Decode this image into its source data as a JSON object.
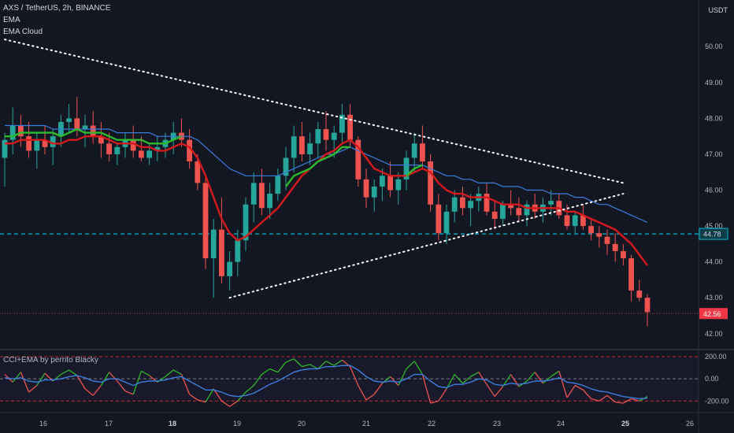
{
  "header": {
    "symbol_line": "AXS / TetherUS, 2h, BINANCE",
    "indicator_1": "EMA",
    "indicator_2": "EMA Cloud",
    "oscillator_label": "CCI+EMA by perrito Blacky",
    "currency": "USDT"
  },
  "colors": {
    "background": "#131722",
    "up": "#26a69a",
    "down": "#ef5350",
    "ema_red": "#d6191c",
    "ema_green": "#2eb82e",
    "ema_blue": "#3b7ddd",
    "price_line": "#00bcd4",
    "last_price": "#f23645"
  },
  "chart_data": [
    {
      "type": "candlestick",
      "title": "AXS / TetherUS, 2h, BINANCE",
      "x_tick_labels": [
        "16",
        "17",
        "18",
        "19",
        "20",
        "21",
        "22",
        "23",
        "24",
        "25",
        "26"
      ],
      "y_tick_labels": [
        "42.00",
        "43.00",
        "44.00",
        "45.00",
        "46.00",
        "47.00",
        "48.00",
        "49.00",
        "50.00"
      ],
      "ylim": [
        41.6,
        51.3
      ],
      "horizontal_level": {
        "value": 44.78,
        "label": "44.78"
      },
      "last_price": {
        "value": 42.56,
        "label": "42.56"
      },
      "candles_ohlc": [
        [
          46.9,
          47.6,
          46.1,
          47.4
        ],
        [
          47.4,
          48.3,
          47.0,
          47.8
        ],
        [
          47.8,
          48.1,
          47.2,
          47.5
        ],
        [
          47.5,
          47.9,
          46.9,
          47.1
        ],
        [
          47.1,
          47.6,
          46.6,
          47.4
        ],
        [
          47.4,
          47.8,
          47.0,
          47.2
        ],
        [
          47.2,
          47.7,
          46.7,
          47.5
        ],
        [
          47.5,
          48.1,
          47.2,
          47.9
        ],
        [
          47.9,
          48.4,
          47.6,
          48.0
        ],
        [
          48.0,
          48.6,
          47.5,
          47.7
        ],
        [
          47.7,
          48.1,
          47.2,
          47.8
        ],
        [
          47.8,
          48.2,
          47.3,
          47.5
        ],
        [
          47.5,
          47.9,
          46.9,
          47.3
        ],
        [
          47.3,
          47.6,
          46.8,
          47.0
        ],
        [
          47.0,
          47.3,
          46.7,
          47.2
        ],
        [
          47.2,
          47.6,
          46.9,
          47.4
        ],
        [
          47.4,
          47.8,
          46.9,
          47.1
        ],
        [
          47.1,
          47.5,
          46.8,
          46.9
        ],
        [
          46.9,
          47.3,
          46.7,
          47.1
        ],
        [
          47.1,
          47.5,
          46.8,
          47.2
        ],
        [
          47.2,
          47.6,
          46.9,
          47.4
        ],
        [
          47.4,
          47.9,
          47.0,
          47.6
        ],
        [
          47.6,
          48.0,
          47.2,
          47.4
        ],
        [
          47.4,
          47.7,
          46.6,
          46.8
        ],
        [
          46.8,
          47.0,
          46.0,
          46.2
        ],
        [
          46.2,
          46.4,
          43.8,
          44.1
        ],
        [
          44.1,
          45.2,
          43.0,
          44.9
        ],
        [
          44.9,
          45.8,
          43.4,
          43.6
        ],
        [
          43.6,
          44.3,
          43.2,
          44.0
        ],
        [
          44.0,
          44.9,
          43.6,
          44.6
        ],
        [
          44.6,
          45.8,
          44.3,
          45.6
        ],
        [
          45.6,
          46.5,
          45.1,
          46.2
        ],
        [
          46.2,
          46.6,
          45.3,
          45.5
        ],
        [
          45.5,
          46.2,
          45.2,
          45.9
        ],
        [
          45.9,
          46.6,
          45.7,
          46.4
        ],
        [
          46.4,
          47.2,
          46.0,
          46.9
        ],
        [
          46.9,
          47.8,
          46.5,
          47.5
        ],
        [
          47.5,
          47.9,
          46.8,
          47.0
        ],
        [
          47.0,
          47.6,
          46.7,
          47.3
        ],
        [
          47.3,
          47.9,
          46.9,
          47.7
        ],
        [
          47.7,
          48.2,
          47.1,
          47.4
        ],
        [
          47.4,
          47.8,
          46.9,
          47.6
        ],
        [
          47.6,
          48.4,
          47.3,
          48.1
        ],
        [
          48.1,
          48.4,
          47.2,
          47.4
        ],
        [
          47.4,
          47.5,
          46.1,
          46.3
        ],
        [
          46.3,
          46.6,
          45.5,
          45.8
        ],
        [
          45.8,
          46.3,
          45.4,
          46.1
        ],
        [
          46.1,
          46.6,
          45.7,
          46.4
        ],
        [
          46.4,
          46.8,
          45.8,
          46.0
        ],
        [
          46.0,
          46.5,
          45.6,
          46.3
        ],
        [
          46.3,
          47.1,
          46.0,
          46.9
        ],
        [
          46.9,
          47.6,
          46.5,
          47.3
        ],
        [
          47.3,
          47.8,
          46.6,
          46.8
        ],
        [
          46.8,
          47.0,
          45.4,
          45.6
        ],
        [
          45.6,
          45.9,
          44.6,
          44.8
        ],
        [
          44.8,
          45.6,
          44.5,
          45.4
        ],
        [
          45.4,
          46.0,
          45.1,
          45.8
        ],
        [
          45.8,
          46.1,
          45.3,
          45.5
        ],
        [
          45.5,
          45.9,
          45.0,
          45.7
        ],
        [
          45.7,
          46.1,
          45.4,
          45.9
        ],
        [
          45.9,
          46.2,
          45.3,
          45.4
        ],
        [
          45.4,
          45.7,
          44.9,
          45.2
        ],
        [
          45.2,
          45.7,
          45.0,
          45.6
        ],
        [
          45.6,
          46.0,
          45.3,
          45.5
        ],
        [
          45.5,
          45.8,
          45.1,
          45.3
        ],
        [
          45.3,
          45.7,
          45.0,
          45.6
        ],
        [
          45.6,
          45.9,
          45.2,
          45.4
        ],
        [
          45.4,
          45.8,
          45.1,
          45.6
        ],
        [
          45.6,
          46.0,
          45.3,
          45.7
        ],
        [
          45.7,
          45.9,
          45.2,
          45.3
        ],
        [
          45.3,
          45.6,
          44.9,
          45.0
        ],
        [
          45.0,
          45.4,
          44.8,
          45.3
        ],
        [
          45.3,
          45.6,
          44.9,
          45.0
        ],
        [
          45.0,
          45.2,
          44.6,
          44.8
        ],
        [
          44.8,
          45.0,
          44.4,
          44.7
        ],
        [
          44.7,
          44.9,
          44.2,
          44.5
        ],
        [
          44.5,
          44.8,
          44.0,
          44.3
        ],
        [
          44.3,
          44.5,
          43.9,
          44.1
        ],
        [
          44.1,
          44.2,
          42.9,
          43.2
        ],
        [
          43.2,
          43.5,
          42.9,
          43.0
        ],
        [
          43.0,
          43.1,
          42.2,
          42.6
        ]
      ],
      "series": [
        {
          "name": "EMA (red)",
          "color": "#d6191c",
          "values": [
            47.3,
            47.3,
            47.4,
            47.4,
            47.4,
            47.4,
            47.3,
            47.3,
            47.4,
            47.4,
            47.5,
            47.5,
            47.5,
            47.4,
            47.3,
            47.3,
            47.3,
            47.2,
            47.2,
            47.1,
            47.1,
            47.2,
            47.3,
            47.2,
            46.9,
            46.4,
            45.8,
            45.2,
            44.8,
            44.6,
            44.7,
            44.9,
            45.1,
            45.3,
            45.5,
            45.8,
            46.1,
            46.4,
            46.6,
            46.8,
            47.0,
            47.1,
            47.3,
            47.4,
            47.2,
            46.9,
            46.6,
            46.5,
            46.4,
            46.4,
            46.4,
            46.5,
            46.6,
            46.5,
            46.2,
            46.0,
            45.9,
            45.9,
            45.8,
            45.8,
            45.8,
            45.7,
            45.6,
            45.6,
            45.6,
            45.5,
            45.5,
            45.5,
            45.5,
            45.5,
            45.4,
            45.4,
            45.3,
            45.2,
            45.1,
            45.0,
            44.9,
            44.7,
            44.5,
            44.2,
            43.9
          ]
        },
        {
          "name": "EMA (green)",
          "color": "#2eb82e",
          "values": [
            47.5,
            47.5,
            47.6,
            47.6,
            47.6,
            47.6,
            47.6,
            47.5,
            47.6,
            47.7,
            47.6,
            47.6,
            47.6,
            47.5,
            47.4,
            47.4,
            47.4,
            47.4,
            47.3,
            47.3,
            47.3,
            47.4,
            47.5,
            null,
            null,
            null,
            null,
            null,
            null,
            null,
            null,
            null,
            null,
            null,
            null,
            46.1,
            46.4,
            46.5,
            46.6,
            46.8,
            46.9,
            47.0,
            47.2,
            47.2,
            null,
            null,
            null,
            null,
            null,
            null,
            46.4,
            46.6,
            46.7,
            null,
            null,
            null,
            null,
            null,
            null,
            null,
            null,
            null,
            null,
            null,
            null,
            null,
            null,
            null,
            null,
            null,
            null,
            null,
            null,
            null,
            null,
            null,
            null,
            null,
            null,
            null,
            null
          ]
        },
        {
          "name": "EMA (blue)",
          "color": "#3b7ddd",
          "values": [
            47.8,
            47.8,
            47.8,
            47.8,
            47.8,
            47.8,
            47.7,
            47.7,
            47.7,
            47.7,
            47.7,
            47.7,
            47.7,
            47.7,
            47.6,
            47.6,
            47.6,
            47.6,
            47.6,
            47.5,
            47.5,
            47.5,
            47.5,
            47.5,
            47.4,
            47.2,
            47.0,
            46.8,
            46.6,
            46.5,
            46.4,
            46.4,
            46.4,
            46.4,
            46.4,
            46.5,
            46.6,
            46.7,
            46.8,
            46.9,
            47.0,
            47.0,
            47.1,
            47.2,
            47.1,
            47.0,
            46.9,
            46.8,
            46.7,
            46.7,
            46.7,
            46.7,
            46.7,
            46.6,
            46.5,
            46.4,
            46.4,
            46.3,
            46.3,
            46.2,
            46.2,
            46.2,
            46.1,
            46.1,
            46.1,
            46.0,
            46.0,
            46.0,
            45.9,
            45.9,
            45.9,
            45.8,
            45.8,
            45.7,
            45.6,
            45.6,
            45.5,
            45.4,
            45.3,
            45.2,
            45.1
          ]
        }
      ],
      "trendlines": [
        {
          "from": {
            "x_index": 0,
            "y": 50.2
          },
          "to": {
            "x_index": 77,
            "y": 46.2
          }
        },
        {
          "from": {
            "x_index": 28,
            "y": 43.0
          },
          "to": {
            "x_index": 77,
            "y": 45.9
          }
        }
      ]
    },
    {
      "type": "line",
      "title": "CCI+EMA by perrito Blacky",
      "y_tick_labels": [
        "200.00",
        "0.00",
        "-200.00"
      ],
      "ylim": [
        -290,
        250
      ],
      "levels": [
        200,
        0,
        -200
      ],
      "series": [
        {
          "name": "CCI",
          "values": [
            40,
            -30,
            60,
            -120,
            -60,
            50,
            -20,
            40,
            80,
            30,
            -90,
            -150,
            -60,
            60,
            -20,
            -110,
            -140,
            70,
            30,
            -30,
            20,
            80,
            40,
            -140,
            -190,
            -210,
            -90,
            -200,
            -250,
            -200,
            -120,
            -60,
            40,
            90,
            60,
            150,
            180,
            110,
            130,
            90,
            160,
            120,
            170,
            110,
            -60,
            -190,
            -140,
            -40,
            20,
            -60,
            90,
            160,
            40,
            -220,
            -200,
            -90,
            40,
            -40,
            20,
            60,
            -50,
            -160,
            -70,
            40,
            -70,
            -20,
            60,
            -40,
            20,
            70,
            -170,
            -60,
            -100,
            -180,
            -200,
            -150,
            -210,
            -220,
            -180,
            -200,
            -160
          ]
        },
        {
          "name": "EMA of CCI",
          "values": [
            10,
            0,
            10,
            -20,
            -30,
            -10,
            -10,
            0,
            20,
            30,
            10,
            -20,
            -30,
            0,
            0,
            -30,
            -60,
            -30,
            -20,
            -20,
            -10,
            10,
            20,
            -20,
            -60,
            -100,
            -100,
            -120,
            -150,
            -160,
            -150,
            -130,
            -90,
            -50,
            -20,
            20,
            60,
            80,
            90,
            90,
            110,
            110,
            120,
            120,
            80,
            20,
            -20,
            -30,
            -20,
            -30,
            0,
            40,
            40,
            -20,
            -70,
            -80,
            -50,
            -50,
            -30,
            0,
            -10,
            -50,
            -60,
            -40,
            -50,
            -40,
            -20,
            -20,
            -10,
            10,
            -30,
            -40,
            -60,
            -90,
            -110,
            -120,
            -140,
            -160,
            -170,
            -180,
            -175
          ]
        }
      ]
    }
  ]
}
